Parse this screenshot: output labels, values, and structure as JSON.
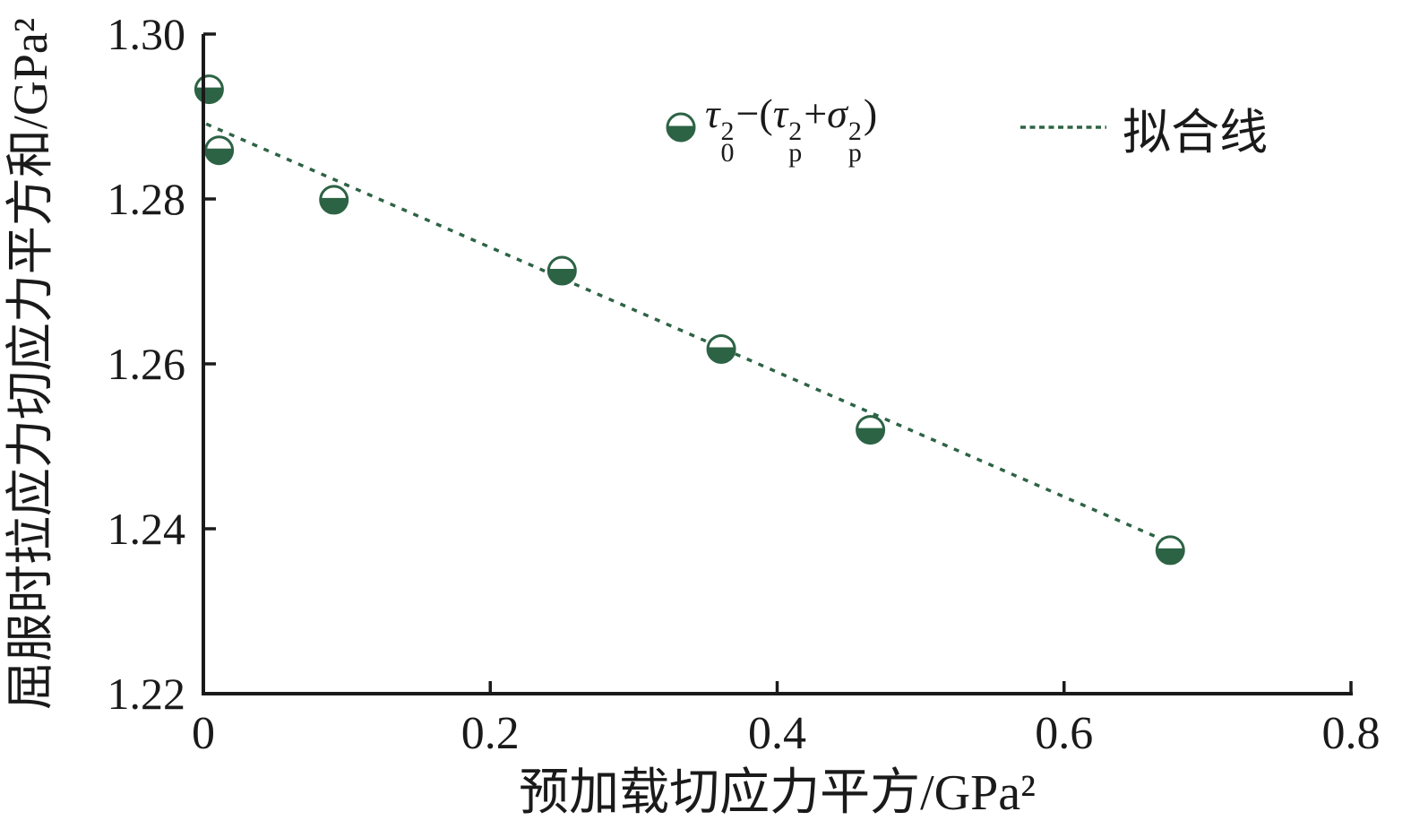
{
  "figure": {
    "background": "#ffffff"
  },
  "colors": {
    "accent_green": "#2d6345",
    "axis_black": "#1a1a1a"
  },
  "legend": {
    "series_formula": [
      {
        "type": "i",
        "text": "τ"
      },
      {
        "type": "ss",
        "sup": "2",
        "sub": "0"
      },
      {
        "type": "n",
        "text": "−("
      },
      {
        "type": "i",
        "text": "τ"
      },
      {
        "type": "ss",
        "sup": "2",
        "sub": "p"
      },
      {
        "type": "n",
        "text": "+"
      },
      {
        "type": "i",
        "text": "σ"
      },
      {
        "type": "ss",
        "sup": "2",
        "sub": "p"
      },
      {
        "type": "n",
        "text": ")"
      }
    ],
    "series_label_plain": "τ0²−(τp²+σp²)",
    "fit_label": "拟合线"
  },
  "chart_data": {
    "type": "scatter",
    "title": "",
    "xlabel": "预加载切应力平方/GPa²",
    "ylabel": "屈服时拉应力切应力平方和/GPa²",
    "xlim": [
      0,
      0.8
    ],
    "ylim": [
      1.22,
      1.3
    ],
    "xticks": [
      0,
      0.2,
      0.4,
      0.6,
      0.8
    ],
    "xtick_labels": [
      "0",
      "0.2",
      "0.4",
      "0.6",
      "0.8"
    ],
    "yticks": [
      1.22,
      1.24,
      1.26,
      1.28,
      1.3
    ],
    "ytick_labels": [
      "1.22",
      "1.24",
      "1.26",
      "1.28",
      "1.30"
    ],
    "grid": false,
    "legend_position": "upper center, inside axes",
    "series": [
      {
        "name": "τ0²−(τp²+σp²)",
        "type": "scatter",
        "marker": "circle-bottom-half-filled",
        "color": "#2d6345",
        "points": [
          [
            0.004,
            1.2933
          ],
          [
            0.011,
            1.2859
          ],
          [
            0.091,
            1.2799
          ],
          [
            0.25,
            1.2713
          ],
          [
            0.361,
            1.2618
          ],
          [
            0.465,
            1.252
          ],
          [
            0.674,
            1.2374
          ]
        ]
      },
      {
        "name": "拟合线",
        "type": "line",
        "style": "dotted",
        "color": "#2d6345",
        "points": [
          [
            0.002,
            1.2891
          ],
          [
            0.683,
            1.2376
          ]
        ]
      }
    ]
  }
}
